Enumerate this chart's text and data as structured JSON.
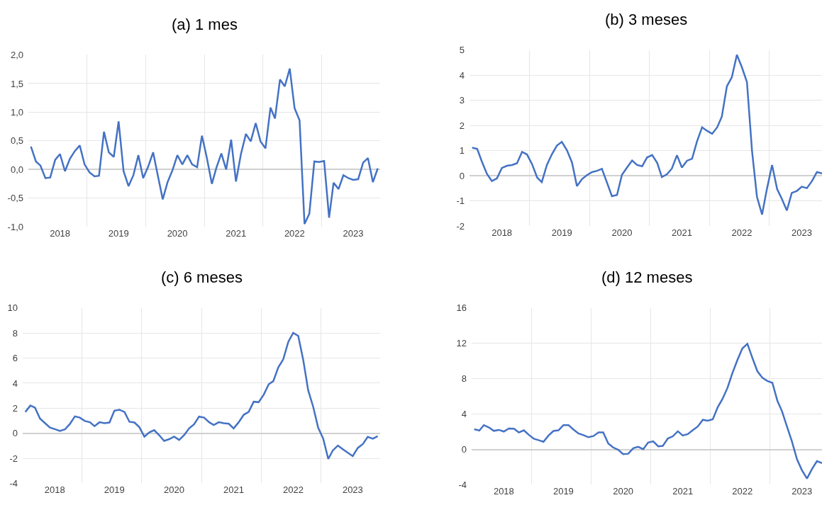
{
  "chart_data": [
    {
      "type": "line",
      "title": "(a) 1 mes",
      "color": "#4472c4",
      "grid": true,
      "marker": "none",
      "line_style": "solid",
      "x": [
        "2018-01",
        "2018-02",
        "2018-03",
        "2018-04",
        "2018-05",
        "2018-06",
        "2018-07",
        "2018-08",
        "2018-09",
        "2018-10",
        "2018-11",
        "2018-12",
        "2019-01",
        "2019-02",
        "2019-03",
        "2019-04",
        "2019-05",
        "2019-06",
        "2019-07",
        "2019-08",
        "2019-09",
        "2019-10",
        "2019-11",
        "2019-12",
        "2020-01",
        "2020-02",
        "2020-03",
        "2020-04",
        "2020-05",
        "2020-06",
        "2020-07",
        "2020-08",
        "2020-09",
        "2020-10",
        "2020-11",
        "2020-12",
        "2021-01",
        "2021-02",
        "2021-03",
        "2021-04",
        "2021-05",
        "2021-06",
        "2021-07",
        "2021-08",
        "2021-09",
        "2021-10",
        "2021-11",
        "2021-12",
        "2022-01",
        "2022-02",
        "2022-03",
        "2022-04",
        "2022-05",
        "2022-06",
        "2022-07",
        "2022-08",
        "2022-09",
        "2022-10",
        "2022-11",
        "2022-12",
        "2023-01",
        "2023-02",
        "2023-03",
        "2023-04",
        "2023-05",
        "2023-06",
        "2023-07",
        "2023-08",
        "2023-09",
        "2023-10",
        "2023-11",
        "2023-12"
      ],
      "values": [
        0.4,
        0.14,
        0.07,
        -0.15,
        -0.14,
        0.17,
        0.27,
        -0.03,
        0.19,
        0.32,
        0.42,
        0.09,
        -0.05,
        -0.12,
        -0.11,
        0.66,
        0.3,
        0.22,
        0.84,
        -0.03,
        -0.29,
        -0.1,
        0.25,
        -0.15,
        0.05,
        0.3,
        -0.1,
        -0.52,
        -0.22,
        -0.01,
        0.25,
        0.09,
        0.25,
        0.09,
        0.04,
        0.59,
        0.2,
        -0.25,
        0.03,
        0.28,
        0.0,
        0.52,
        -0.21,
        0.27,
        0.62,
        0.49,
        0.81,
        0.49,
        0.37,
        1.08,
        0.89,
        1.57,
        1.45,
        1.76,
        1.07,
        0.86,
        -0.95,
        -0.77,
        0.14,
        0.13,
        0.15,
        -0.84,
        -0.23,
        -0.34,
        -0.1,
        -0.15,
        -0.18,
        -0.17,
        0.12,
        0.2,
        -0.22,
        0.02
      ],
      "xlim": [
        "2017-12-16",
        "2023-12-16"
      ],
      "xticks": [
        {
          "value": "2018-07-01",
          "label": "2018"
        },
        {
          "value": "2019-07-01",
          "label": "2019"
        },
        {
          "value": "2020-07-01",
          "label": "2020"
        },
        {
          "value": "2021-07-01",
          "label": "2021"
        },
        {
          "value": "2022-07-01",
          "label": "2022"
        },
        {
          "value": "2023-07-01",
          "label": "2023"
        },
        {
          "value": "2018-12-16",
          "label": null
        },
        {
          "value": "2019-12-16",
          "label": null
        },
        {
          "value": "2020-12-16",
          "label": null
        },
        {
          "value": "2021-12-16",
          "label": null
        },
        {
          "value": "2022-12-16",
          "label": null
        }
      ],
      "ylim": [
        -1.0,
        2.0
      ],
      "yticks": [
        {
          "value": -1.0,
          "label": "-1,0"
        },
        {
          "value": -0.5,
          "label": "-0,5"
        },
        {
          "value": 0.0,
          "label": "0,0"
        },
        {
          "value": 0.5,
          "label": "0,5"
        },
        {
          "value": 1.0,
          "label": "1,0"
        },
        {
          "value": 1.5,
          "label": "1,5"
        },
        {
          "value": 2.0,
          "label": "2,0"
        }
      ]
    },
    {
      "type": "line",
      "title": "(b) 3 meses",
      "color": "#4472c4",
      "grid": true,
      "marker": "none",
      "line_style": "solid",
      "x": [
        "2018-01",
        "2018-02",
        "2018-03",
        "2018-04",
        "2018-05",
        "2018-06",
        "2018-07",
        "2018-08",
        "2018-09",
        "2018-10",
        "2018-11",
        "2018-12",
        "2019-01",
        "2019-02",
        "2019-03",
        "2019-04",
        "2019-05",
        "2019-06",
        "2019-07",
        "2019-08",
        "2019-09",
        "2019-10",
        "2019-11",
        "2019-12",
        "2020-01",
        "2020-02",
        "2020-03",
        "2020-04",
        "2020-05",
        "2020-06",
        "2020-07",
        "2020-08",
        "2020-09",
        "2020-10",
        "2020-11",
        "2020-12",
        "2021-01",
        "2021-02",
        "2021-03",
        "2021-04",
        "2021-05",
        "2021-06",
        "2021-07",
        "2021-08",
        "2021-09",
        "2021-10",
        "2021-11",
        "2021-12",
        "2022-01",
        "2022-02",
        "2022-03",
        "2022-04",
        "2022-05",
        "2022-06",
        "2022-07",
        "2022-08",
        "2022-09",
        "2022-10",
        "2022-11",
        "2022-12",
        "2023-01",
        "2023-02",
        "2023-03",
        "2023-04",
        "2023-05",
        "2023-06",
        "2023-07",
        "2023-08",
        "2023-09",
        "2023-10",
        "2023-11"
      ],
      "values": [
        1.12,
        1.07,
        0.57,
        0.08,
        -0.21,
        -0.1,
        0.31,
        0.4,
        0.43,
        0.5,
        0.95,
        0.85,
        0.46,
        -0.07,
        -0.25,
        0.43,
        0.85,
        1.2,
        1.35,
        1.02,
        0.53,
        -0.41,
        -0.13,
        0.03,
        0.15,
        0.2,
        0.28,
        -0.27,
        -0.81,
        -0.76,
        0.04,
        0.33,
        0.61,
        0.43,
        0.38,
        0.73,
        0.83,
        0.51,
        -0.05,
        0.06,
        0.29,
        0.82,
        0.33,
        0.6,
        0.68,
        1.37,
        1.93,
        1.79,
        1.67,
        1.93,
        2.35,
        3.56,
        3.92,
        4.81,
        4.32,
        3.73,
        0.99,
        -0.83,
        -1.54,
        -0.51,
        0.43,
        -0.53,
        -0.91,
        -1.38,
        -0.68,
        -0.6,
        -0.43,
        -0.49,
        -0.21,
        0.15,
        0.1
      ],
      "xlim": [
        "2017-12-16",
        "2023-11-01"
      ],
      "xticks": [
        {
          "value": "2018-07-01",
          "label": "2018"
        },
        {
          "value": "2019-07-01",
          "label": "2019"
        },
        {
          "value": "2020-07-01",
          "label": "2020"
        },
        {
          "value": "2021-07-01",
          "label": "2021"
        },
        {
          "value": "2022-07-01",
          "label": "2022"
        },
        {
          "value": "2023-07-01",
          "label": "2023"
        },
        {
          "value": "2018-12-16",
          "label": null
        },
        {
          "value": "2019-12-16",
          "label": null
        },
        {
          "value": "2020-12-16",
          "label": null
        },
        {
          "value": "2021-12-16",
          "label": null
        },
        {
          "value": "2022-12-16",
          "label": null
        }
      ],
      "ylim": [
        -2,
        5
      ],
      "yticks": [
        -2,
        -1,
        0,
        1,
        2,
        3,
        4,
        5
      ]
    },
    {
      "type": "line",
      "title": "(c) 6 meses",
      "color": "#4472c4",
      "grid": true,
      "marker": "none",
      "line_style": "solid",
      "x": [
        "2018-01",
        "2018-02",
        "2018-03",
        "2018-04",
        "2018-05",
        "2018-06",
        "2018-07",
        "2018-08",
        "2018-09",
        "2018-10",
        "2018-11",
        "2018-12",
        "2019-01",
        "2019-02",
        "2019-03",
        "2019-04",
        "2019-05",
        "2019-06",
        "2019-07",
        "2019-08",
        "2019-09",
        "2019-10",
        "2019-11",
        "2019-12",
        "2020-01",
        "2020-02",
        "2020-03",
        "2020-04",
        "2020-05",
        "2020-06",
        "2020-07",
        "2020-08",
        "2020-09",
        "2020-10",
        "2020-11",
        "2020-12",
        "2021-01",
        "2021-02",
        "2021-03",
        "2021-04",
        "2021-05",
        "2021-06",
        "2021-07",
        "2021-08",
        "2021-09",
        "2021-10",
        "2021-11",
        "2021-12",
        "2022-01",
        "2022-02",
        "2022-03",
        "2022-04",
        "2022-05",
        "2022-06",
        "2022-07",
        "2022-08",
        "2022-09",
        "2022-10",
        "2022-11",
        "2022-12",
        "2023-01",
        "2023-02",
        "2023-03",
        "2023-04",
        "2023-05",
        "2023-06",
        "2023-07",
        "2023-08",
        "2023-09",
        "2023-10",
        "2023-11",
        "2023-12"
      ],
      "values": [
        1.7,
        2.21,
        2.05,
        1.17,
        0.82,
        0.45,
        0.33,
        0.18,
        0.31,
        0.74,
        1.35,
        1.25,
        0.98,
        0.88,
        0.57,
        0.88,
        0.8,
        0.86,
        1.8,
        1.88,
        1.7,
        0.92,
        0.86,
        0.49,
        -0.27,
        0.08,
        0.25,
        -0.16,
        -0.61,
        -0.47,
        -0.27,
        -0.53,
        -0.14,
        0.39,
        0.72,
        1.33,
        1.25,
        0.88,
        0.66,
        0.88,
        0.8,
        0.76,
        0.39,
        0.88,
        1.48,
        1.7,
        2.52,
        2.48,
        3.07,
        3.91,
        4.16,
        5.27,
        5.9,
        7.29,
        8.01,
        7.77,
        5.82,
        3.42,
        2.09,
        0.45,
        -0.43,
        -2.05,
        -1.37,
        -0.98,
        -1.27,
        -1.56,
        -1.82,
        -1.17,
        -0.86,
        -0.29,
        -0.43,
        -0.23
      ],
      "xlim": [
        "2017-12-16",
        "2023-12-16"
      ],
      "xticks": [
        {
          "value": "2018-07-01",
          "label": "2018"
        },
        {
          "value": "2019-07-01",
          "label": "2019"
        },
        {
          "value": "2020-07-01",
          "label": "2020"
        },
        {
          "value": "2021-07-01",
          "label": "2021"
        },
        {
          "value": "2022-07-01",
          "label": "2022"
        },
        {
          "value": "2023-07-01",
          "label": "2023"
        },
        {
          "value": "2018-12-16",
          "label": null
        },
        {
          "value": "2019-12-16",
          "label": null
        },
        {
          "value": "2020-12-16",
          "label": null
        },
        {
          "value": "2021-12-16",
          "label": null
        },
        {
          "value": "2022-12-16",
          "label": null
        }
      ],
      "ylim": [
        -4,
        10
      ],
      "yticks": [
        -4,
        -2,
        0,
        2,
        4,
        6,
        8,
        10
      ]
    },
    {
      "type": "line",
      "title": "(d) 12 meses",
      "color": "#4472c4",
      "grid": true,
      "marker": "none",
      "line_style": "solid",
      "x": [
        "2018-01",
        "2018-02",
        "2018-03",
        "2018-04",
        "2018-05",
        "2018-06",
        "2018-07",
        "2018-08",
        "2018-09",
        "2018-10",
        "2018-11",
        "2018-12",
        "2019-01",
        "2019-02",
        "2019-03",
        "2019-04",
        "2019-05",
        "2019-06",
        "2019-07",
        "2019-08",
        "2019-09",
        "2019-10",
        "2019-11",
        "2019-12",
        "2020-01",
        "2020-02",
        "2020-03",
        "2020-04",
        "2020-05",
        "2020-06",
        "2020-07",
        "2020-08",
        "2020-09",
        "2020-10",
        "2020-11",
        "2020-12",
        "2021-01",
        "2021-02",
        "2021-03",
        "2021-04",
        "2021-05",
        "2021-06",
        "2021-07",
        "2021-08",
        "2021-09",
        "2021-10",
        "2021-11",
        "2021-12",
        "2022-01",
        "2022-02",
        "2022-03",
        "2022-04",
        "2022-05",
        "2022-06",
        "2022-07",
        "2022-08",
        "2022-09",
        "2022-10",
        "2022-11",
        "2022-12",
        "2023-01",
        "2023-02",
        "2023-03",
        "2023-04",
        "2023-05",
        "2023-06",
        "2023-07",
        "2023-08",
        "2023-09",
        "2023-10",
        "2023-11"
      ],
      "values": [
        2.29,
        2.13,
        2.75,
        2.48,
        2.1,
        2.21,
        2.02,
        2.37,
        2.35,
        1.92,
        2.16,
        1.65,
        1.21,
        1.03,
        0.86,
        1.57,
        2.08,
        2.16,
        2.75,
        2.75,
        2.24,
        1.81,
        1.62,
        1.38,
        1.51,
        1.92,
        1.92,
        0.67,
        0.22,
        -0.05,
        -0.54,
        -0.49,
        0.13,
        0.3,
        0.03,
        0.78,
        0.92,
        0.35,
        0.4,
        1.24,
        1.48,
        2.05,
        1.57,
        1.73,
        2.19,
        2.59,
        3.35,
        3.24,
        3.4,
        4.8,
        5.69,
        6.96,
        8.63,
        10.12,
        11.41,
        11.95,
        10.33,
        8.85,
        8.1,
        7.74,
        7.53,
        5.48,
        4.32,
        2.56,
        0.89,
        -1.13,
        -2.35,
        -3.29,
        -2.21,
        -1.32,
        -1.54
      ],
      "xlim": [
        "2017-12-16",
        "2023-11-01"
      ],
      "xticks": [
        {
          "value": "2018-07-01",
          "label": "2018"
        },
        {
          "value": "2019-07-01",
          "label": "2019"
        },
        {
          "value": "2020-07-01",
          "label": "2020"
        },
        {
          "value": "2021-07-01",
          "label": "2021"
        },
        {
          "value": "2022-07-01",
          "label": "2022"
        },
        {
          "value": "2023-07-01",
          "label": "2023"
        },
        {
          "value": "2018-12-16",
          "label": null
        },
        {
          "value": "2019-12-16",
          "label": null
        },
        {
          "value": "2020-12-16",
          "label": null
        },
        {
          "value": "2021-12-16",
          "label": null
        },
        {
          "value": "2022-12-16",
          "label": null
        }
      ],
      "ylim": [
        -4,
        16
      ],
      "yticks": [
        -4,
        0,
        4,
        8,
        12,
        16
      ]
    }
  ]
}
